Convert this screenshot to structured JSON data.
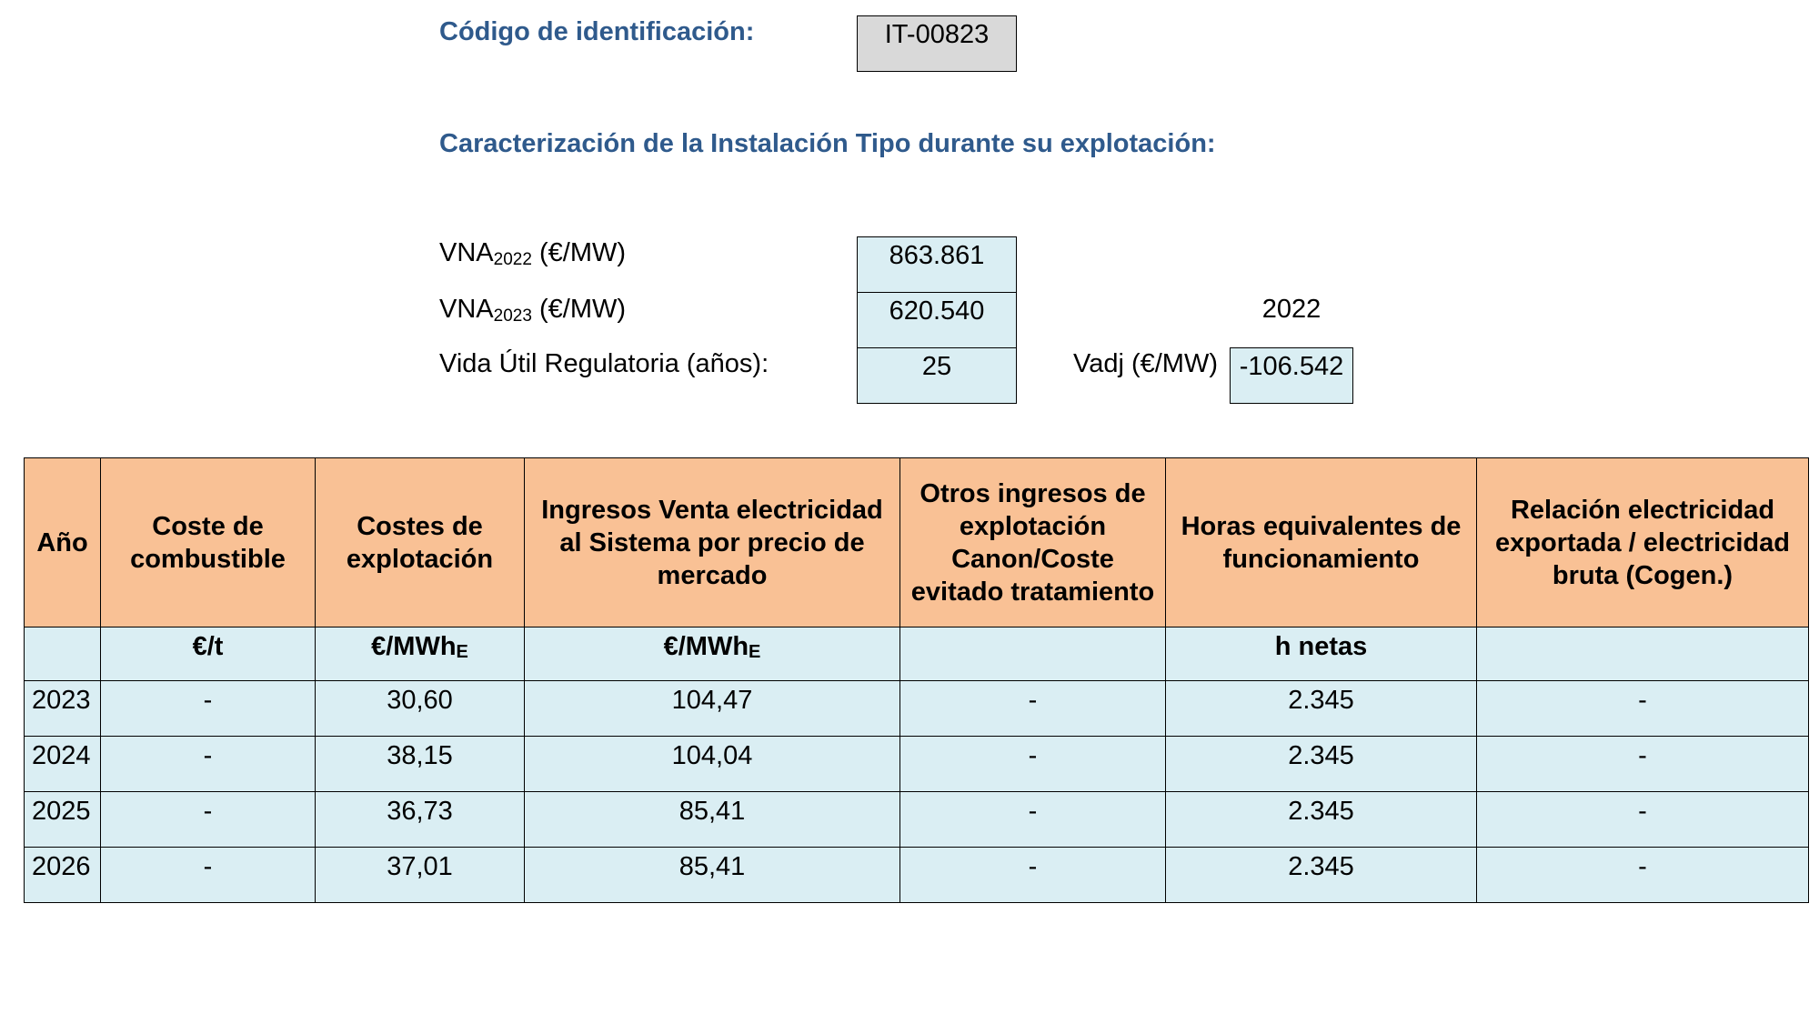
{
  "header": {
    "code_label": "Código de identificación:",
    "code_value": "IT-00823",
    "section_title": "Caracterización de la Instalación Tipo durante su explotación:"
  },
  "params": {
    "vna2022_base": "VNA",
    "vna2022_sub": "2022",
    "vna2022_unit": " (€/MW)",
    "vna2022_value": "863.861",
    "vna2023_base": "VNA",
    "vna2023_sub": "2023",
    "vna2023_unit": " (€/MW)",
    "vna2023_value": "620.540",
    "vida_label": "Vida Útil Regulatoria (años):",
    "vida_value": "25",
    "year_label": "2022",
    "vadj_label": "Vadj (€/MW)",
    "vadj_value": "-106.542"
  },
  "table": {
    "headers": [
      "Año",
      "Coste de combustible",
      "Costes de explotación",
      "Ingresos Venta electricidad al Sistema por precio de mercado",
      "Otros ingresos de explotación Canon/Coste evitado tratamiento",
      "Horas equivalentes de funcionamiento",
      "Relación electricidad exportada / electricidad bruta (Cogen.)"
    ],
    "units": {
      "anio": "",
      "combustible": "€/t",
      "explotacion_base": "€/MWh",
      "explotacion_sub": "E",
      "ingresos_base": "€/MWh",
      "ingresos_sub": "E",
      "otros": "",
      "horas": "h netas",
      "relacion": ""
    },
    "rows": [
      {
        "anio": "2023",
        "combustible": "-",
        "explotacion": "30,60",
        "ingresos": "104,47",
        "otros": "-",
        "horas": "2.345",
        "relacion": "-"
      },
      {
        "anio": "2024",
        "combustible": "-",
        "explotacion": "38,15",
        "ingresos": "104,04",
        "otros": "-",
        "horas": "2.345",
        "relacion": "-"
      },
      {
        "anio": "2025",
        "combustible": "-",
        "explotacion": "36,73",
        "ingresos": "85,41",
        "otros": "-",
        "horas": "2.345",
        "relacion": "-"
      },
      {
        "anio": "2026",
        "combustible": "-",
        "explotacion": "37,01",
        "ingresos": "85,41",
        "otros": "-",
        "horas": "2.345",
        "relacion": "-"
      }
    ]
  },
  "colors": {
    "heading": "#2F5A8C",
    "header_fill": "#F9C195",
    "cell_fill": "#DAEEF3",
    "code_fill": "#D9D9D9"
  }
}
